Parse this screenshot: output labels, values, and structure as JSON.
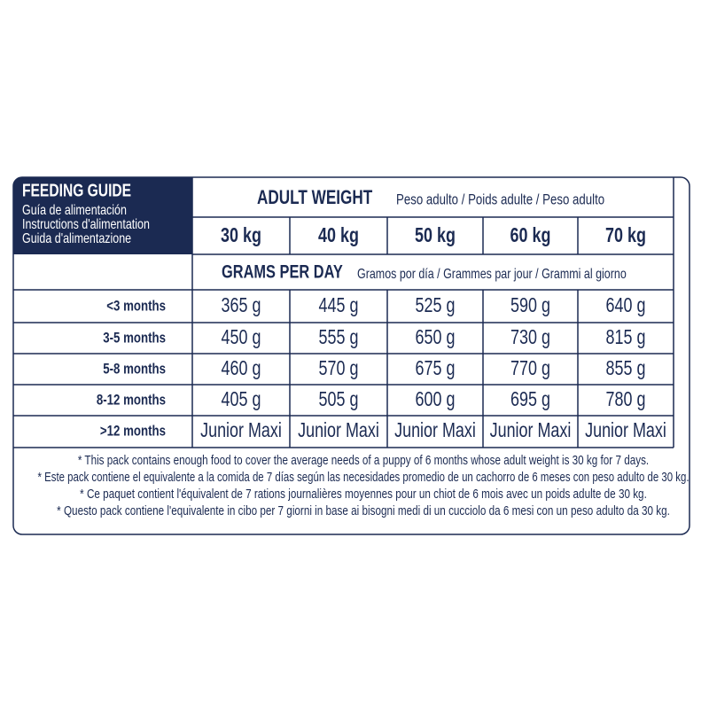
{
  "header": {
    "title": "FEEDING GUIDE",
    "subtitles": [
      "Guía de alimentación",
      "Instructions d'alimentation",
      "Guida d'alimentazione"
    ]
  },
  "adult_weight": {
    "label": "ADULT WEIGHT",
    "translations": "Peso adulto / Poids adulte / Peso adulto"
  },
  "weights": [
    "30 kg",
    "40 kg",
    "50 kg",
    "60 kg",
    "70 kg"
  ],
  "grams_per_day": {
    "label": "GRAMS PER DAY",
    "translations": "Gramos por día / Grammes par jour / Grammi al giorno"
  },
  "table": {
    "rows": [
      [
        "<3 months",
        "365 g",
        "445 g",
        "525 g",
        "590 g",
        "640 g"
      ],
      [
        "3-5 months",
        "450 g",
        "555 g",
        "650 g",
        "730 g",
        "815 g"
      ],
      [
        "5-8 months",
        "460 g",
        "570 g",
        "675 g",
        "770 g",
        "855 g"
      ],
      [
        "8-12 months",
        "405 g",
        "505 g",
        "600 g",
        "695 g",
        "780 g"
      ],
      [
        ">12 months",
        "Junior Maxi",
        "Junior Maxi",
        "Junior Maxi",
        "Junior Maxi",
        "Junior Maxi"
      ]
    ]
  },
  "footnotes": [
    "* This pack contains enough food to cover the average needs of a puppy of 6 months whose adult weight is 30 kg for 7 days.",
    "* Este pack contiene el equivalente a la comida de 7 días según las necesidades promedio de un cachorro de 6 meses con peso adulto de 30 kg.",
    "* Ce paquet contient l'équivalent de 7 rations journalières moyennes pour un chiot de 6 mois avec un poids adulte de 30 kg.",
    "* Questo pack contiene l'equivalente in cibo per 7 giorni in base ai bisogni medi di un cucciolo da 6 mesi con un peso adulto da 30 kg."
  ]
}
